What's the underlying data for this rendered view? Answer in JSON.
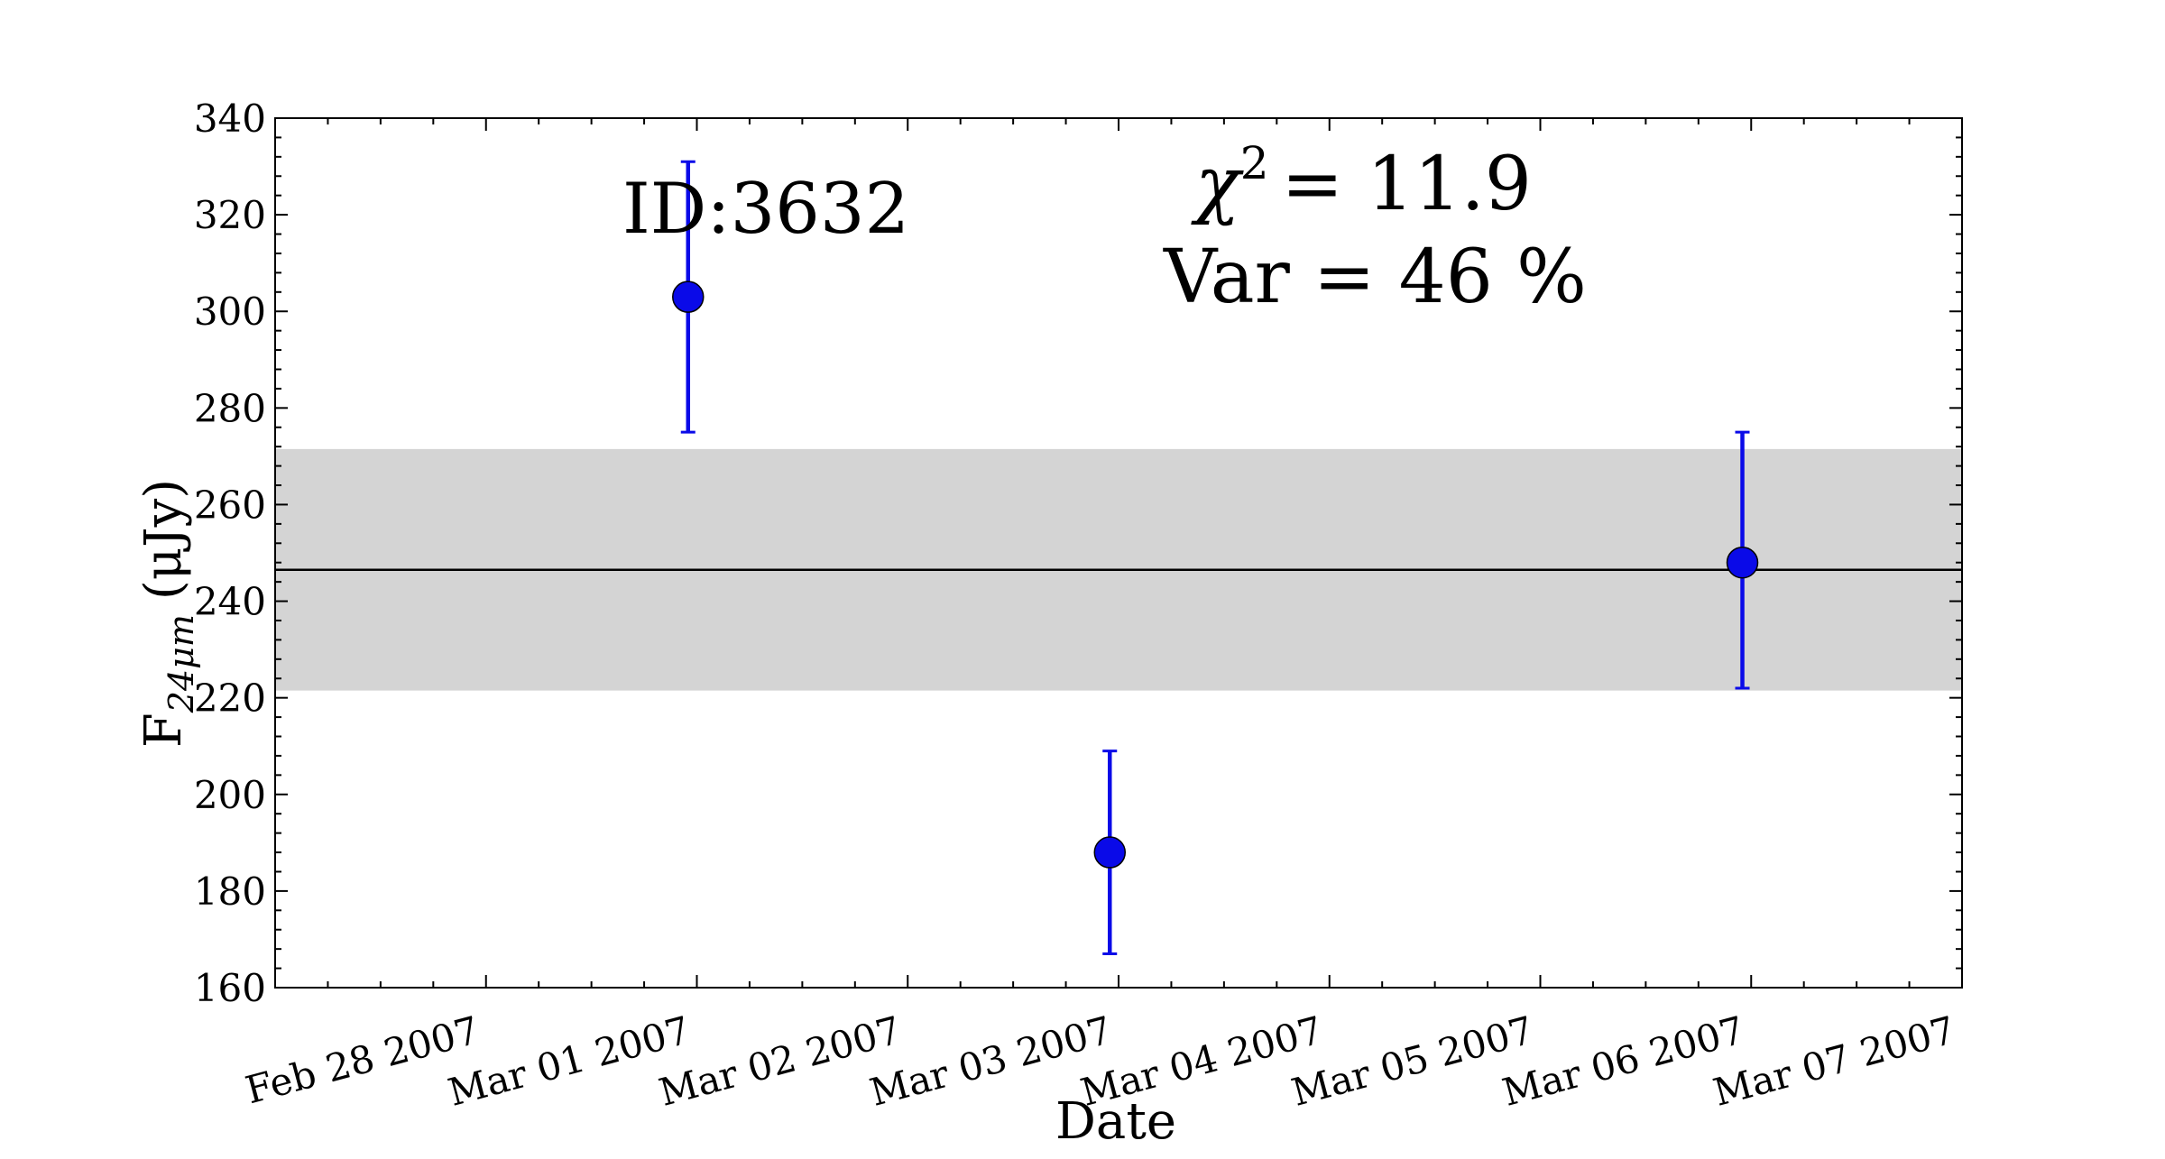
{
  "chart_data": {
    "type": "scatter",
    "xlabel": "Date",
    "ylabel": {
      "main": "F",
      "subscript": "24μm",
      "unit": "(μJy)"
    },
    "xlim": [
      "2007-02-27",
      "2007-03-07"
    ],
    "ylim": [
      160,
      340
    ],
    "x_ticks": [
      {
        "date": "2007-02-28",
        "label": "Feb 28 2007"
      },
      {
        "date": "2007-03-01",
        "label": "Mar 01 2007"
      },
      {
        "date": "2007-03-02",
        "label": "Mar 02 2007"
      },
      {
        "date": "2007-03-03",
        "label": "Mar 03 2007"
      },
      {
        "date": "2007-03-04",
        "label": "Mar 04 2007"
      },
      {
        "date": "2007-03-05",
        "label": "Mar 05 2007"
      },
      {
        "date": "2007-03-06",
        "label": "Mar 06 2007"
      },
      {
        "date": "2007-03-07",
        "label": "Mar 07 2007"
      }
    ],
    "y_ticks": [
      160,
      180,
      200,
      220,
      240,
      260,
      280,
      300,
      320,
      340
    ],
    "grid": false,
    "points": [
      {
        "x": "2007-02-28T23:00",
        "y": 303,
        "yerr_low": 275,
        "yerr_high": 331
      },
      {
        "x": "2007-03-02T23:00",
        "y": 188,
        "yerr_low": 167,
        "yerr_high": 209
      },
      {
        "x": "2007-03-05T23:00",
        "y": 248,
        "yerr_low": 222,
        "yerr_high": 275
      }
    ],
    "mean_line": 246.5,
    "band": [
      221.5,
      271.5
    ],
    "annotations": {
      "id": "ID:3632",
      "chi2": "= 11.9",
      "var": "Var = 46 %"
    },
    "colors": {
      "points": "#0a0ae8",
      "band": "#d4d4d4",
      "mean_line": "#000000"
    }
  }
}
